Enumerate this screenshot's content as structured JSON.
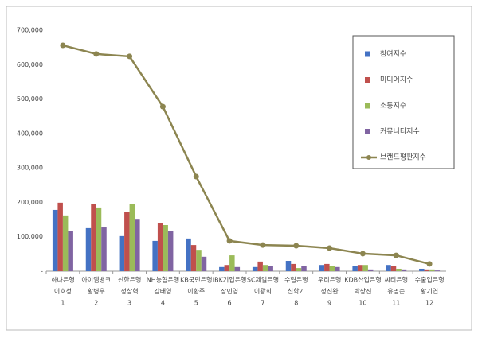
{
  "chart_data": {
    "type": "bar",
    "categories": [
      [
        "하나은행",
        "이호성",
        "1"
      ],
      [
        "아이엠뱅크",
        "황병우",
        "2"
      ],
      [
        "신한은행",
        "정상혁",
        "3"
      ],
      [
        "NH농협은행",
        "강태영",
        "4"
      ],
      [
        "KB국민은행",
        "이환주",
        "5"
      ],
      [
        "IBK기업은행",
        "장민영",
        "6"
      ],
      [
        "SC제일은행",
        "이광희",
        "7"
      ],
      [
        "수협은행",
        "신학기",
        "8"
      ],
      [
        "우리은행",
        "정진완",
        "9"
      ],
      [
        "KDB산업은행",
        "박상진",
        "10"
      ],
      [
        "씨티은행",
        "유명순",
        "11"
      ],
      [
        "수출입은행",
        "황기연",
        "12"
      ]
    ],
    "series": [
      {
        "name": "참여지수",
        "type": "bar",
        "color": "#4472c4",
        "values": [
          178000,
          125000,
          102000,
          88000,
          95000,
          12000,
          12000,
          30000,
          18000,
          16000,
          18000,
          7000
        ]
      },
      {
        "name": "미디어지수",
        "type": "bar",
        "color": "#c0504d",
        "values": [
          199000,
          196000,
          171000,
          139000,
          76000,
          18000,
          28000,
          21000,
          21000,
          18000,
          14000,
          5000
        ]
      },
      {
        "name": "소통지수",
        "type": "bar",
        "color": "#9bbb59",
        "values": [
          162000,
          185000,
          196000,
          134000,
          62000,
          46000,
          18000,
          9000,
          16000,
          18000,
          7000,
          5000
        ]
      },
      {
        "name": "커뮤니티지수",
        "type": "bar",
        "color": "#8064a2",
        "values": [
          116000,
          127000,
          152000,
          116000,
          42000,
          12000,
          16000,
          14000,
          12000,
          5000,
          5000,
          2000
        ]
      },
      {
        "name": "브랜드평판지수",
        "type": "line",
        "color": "#8c8550",
        "values": [
          656000,
          631000,
          624000,
          478000,
          275000,
          88000,
          76000,
          74000,
          67000,
          51000,
          46000,
          21000
        ]
      }
    ],
    "ylim": [
      0,
      700000
    ],
    "yticks": [
      {
        "value": 0,
        "label": "-"
      },
      {
        "value": 100000,
        "label": "100,000"
      },
      {
        "value": 200000,
        "label": "200,000"
      },
      {
        "value": 300000,
        "label": "300,000"
      },
      {
        "value": 400000,
        "label": "400,000"
      },
      {
        "value": 500000,
        "label": "500,000"
      },
      {
        "value": 600000,
        "label": "600,000"
      },
      {
        "value": 700000,
        "label": "700,000"
      }
    ],
    "grid": false,
    "legend": "upper right"
  }
}
